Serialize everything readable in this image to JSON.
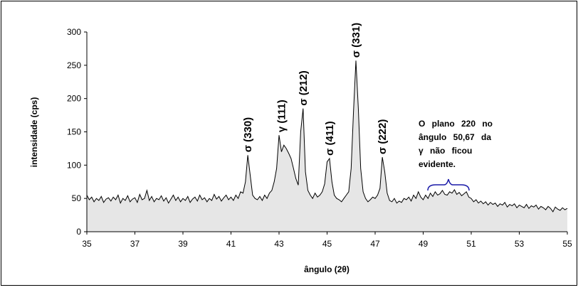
{
  "chart_data": {
    "type": "line",
    "ylabel": "intensidade (cps)",
    "xlabel": "ângulo (2θ)",
    "xlim": [
      35,
      55
    ],
    "xticks": [
      35,
      37,
      39,
      41,
      43,
      45,
      47,
      49,
      51,
      53,
      55
    ],
    "ylim": [
      0,
      300
    ],
    "yticks": [
      0,
      50,
      100,
      150,
      200,
      250,
      300
    ],
    "color": "#000000",
    "fill": "#e6e6e6",
    "x": [
      35,
      35.1,
      35.2,
      35.3,
      35.4,
      35.5,
      35.6,
      35.7,
      35.8,
      35.9,
      36,
      36.1,
      36.2,
      36.3,
      36.4,
      36.5,
      36.6,
      36.7,
      36.8,
      36.9,
      37,
      37.1,
      37.2,
      37.3,
      37.4,
      37.5,
      37.6,
      37.7,
      37.8,
      37.9,
      38,
      38.1,
      38.2,
      38.3,
      38.4,
      38.5,
      38.6,
      38.7,
      38.8,
      38.9,
      39,
      39.1,
      39.2,
      39.3,
      39.4,
      39.5,
      39.6,
      39.7,
      39.8,
      39.9,
      40,
      40.1,
      40.2,
      40.3,
      40.4,
      40.5,
      40.6,
      40.7,
      40.8,
      40.9,
      41,
      41.1,
      41.2,
      41.3,
      41.4,
      41.5,
      41.6,
      41.7,
      41.8,
      41.9,
      42,
      42.1,
      42.2,
      42.3,
      42.4,
      42.5,
      42.6,
      42.7,
      42.8,
      42.9,
      43,
      43.1,
      43.2,
      43.3,
      43.4,
      43.5,
      43.6,
      43.7,
      43.8,
      43.9,
      44,
      44.1,
      44.2,
      44.3,
      44.4,
      44.5,
      44.6,
      44.7,
      44.8,
      44.9,
      45,
      45.1,
      45.2,
      45.3,
      45.4,
      45.5,
      45.6,
      45.7,
      45.8,
      45.9,
      46,
      46.1,
      46.2,
      46.3,
      46.4,
      46.5,
      46.6,
      46.7,
      46.8,
      46.9,
      47,
      47.1,
      47.2,
      47.3,
      47.4,
      47.5,
      47.6,
      47.7,
      47.8,
      47.9,
      48,
      48.1,
      48.2,
      48.3,
      48.4,
      48.5,
      48.6,
      48.7,
      48.8,
      48.9,
      49,
      49.1,
      49.2,
      49.3,
      49.4,
      49.5,
      49.6,
      49.7,
      49.8,
      49.9,
      50,
      50.1,
      50.2,
      50.3,
      50.4,
      50.5,
      50.6,
      50.7,
      50.8,
      50.9,
      51,
      51.1,
      51.2,
      51.3,
      51.4,
      51.5,
      51.6,
      51.7,
      51.8,
      51.9,
      52,
      52.1,
      52.2,
      52.3,
      52.4,
      52.5,
      52.6,
      52.7,
      52.8,
      52.9,
      53,
      53.1,
      53.2,
      53.3,
      53.4,
      53.5,
      53.6,
      53.7,
      53.8,
      53.9,
      54,
      54.1,
      54.2,
      54.3,
      54.4,
      54.5,
      54.6,
      54.7,
      54.8,
      54.9,
      55
    ],
    "values": [
      55,
      48,
      52,
      45,
      50,
      47,
      53,
      44,
      49,
      51,
      46,
      52,
      48,
      55,
      43,
      50,
      47,
      54,
      45,
      49,
      51,
      44,
      56,
      48,
      50,
      62,
      47,
      53,
      45,
      50,
      48,
      54,
      46,
      51,
      43,
      49,
      55,
      47,
      52,
      45,
      50,
      47,
      53,
      44,
      49,
      52,
      46,
      55,
      48,
      51,
      45,
      50,
      47,
      56,
      49,
      53,
      46,
      51,
      55,
      48,
      52,
      47,
      55,
      50,
      60,
      58,
      75,
      115,
      85,
      55,
      50,
      48,
      53,
      47,
      55,
      50,
      58,
      62,
      75,
      95,
      145,
      120,
      130,
      125,
      118,
      110,
      95,
      80,
      70,
      150,
      185,
      90,
      62,
      55,
      50,
      58,
      52,
      55,
      60,
      72,
      105,
      110,
      75,
      55,
      50,
      48,
      45,
      50,
      55,
      60,
      95,
      180,
      257,
      185,
      95,
      60,
      50,
      45,
      48,
      52,
      50,
      55,
      65,
      112,
      90,
      58,
      47,
      45,
      50,
      43,
      46,
      44,
      50,
      48,
      52,
      46,
      55,
      50,
      60,
      52,
      48,
      55,
      50,
      58,
      53,
      60,
      55,
      57,
      62,
      56,
      55,
      60,
      58,
      63,
      56,
      59,
      54,
      57,
      60,
      52,
      50,
      45,
      48,
      43,
      46,
      42,
      45,
      40,
      44,
      41,
      43,
      38,
      42,
      40,
      44,
      37,
      41,
      39,
      42,
      36,
      40,
      38,
      36,
      41,
      35,
      39,
      37,
      40,
      34,
      38,
      36,
      33,
      38,
      35,
      30,
      37,
      34,
      32,
      36,
      33,
      35
    ],
    "peak_labels": [
      {
        "label": "σ (330)",
        "x": 41.7
      },
      {
        "label": "γ (111)",
        "x": 43.1
      },
      {
        "label": "σ (212)",
        "x": 44.0
      },
      {
        "label": "σ (411)",
        "x": 45.1
      },
      {
        "label": "σ (331)",
        "x": 46.2
      },
      {
        "label": "σ (222)",
        "x": 47.3
      }
    ],
    "note": [
      "O plano 220 no",
      "ângulo 50,67 da",
      "γ não ficou",
      "evidente."
    ]
  }
}
